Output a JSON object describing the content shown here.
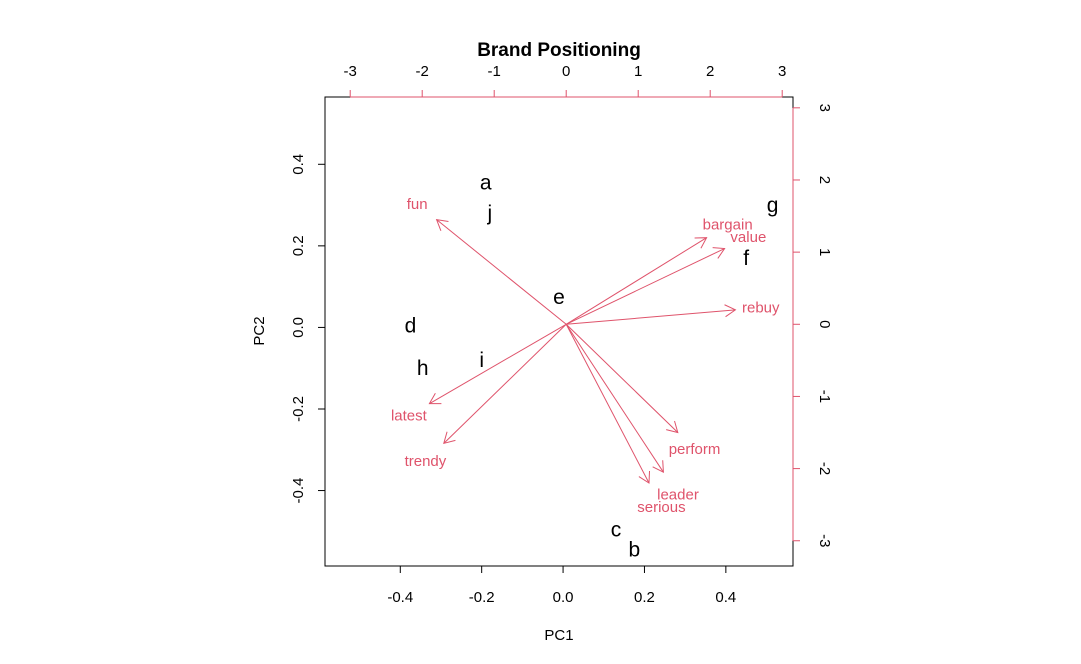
{
  "chart_data": {
    "type": "biplot",
    "title": "Brand Positioning",
    "xlabel": "PC1",
    "ylabel": "PC2",
    "xlim": [
      -0.585,
      0.565
    ],
    "ylim": [
      -0.585,
      0.565
    ],
    "top_right_lim": [
      -3.35,
      3.15
    ],
    "ticks": {
      "bottom": [
        "-0.4",
        "-0.2",
        "0.0",
        "0.2",
        "0.4"
      ],
      "left": [
        "-0.4",
        "-0.2",
        "0.0",
        "0.2",
        "0.4"
      ],
      "top": [
        "-3",
        "-2",
        "-1",
        "0",
        "1",
        "2",
        "3"
      ],
      "right": [
        "-3",
        "-2",
        "-1",
        "0",
        "1",
        "2",
        "3"
      ]
    },
    "observations": [
      {
        "label": "a",
        "x": -0.19,
        "y": 0.355
      },
      {
        "label": "j",
        "x": -0.18,
        "y": 0.28
      },
      {
        "label": "g",
        "x": 0.515,
        "y": 0.3
      },
      {
        "label": "f",
        "x": 0.45,
        "y": 0.17
      },
      {
        "label": "e",
        "x": -0.01,
        "y": 0.075
      },
      {
        "label": "d",
        "x": -0.375,
        "y": 0.005
      },
      {
        "label": "h",
        "x": -0.345,
        "y": -0.1
      },
      {
        "label": "i",
        "x": -0.2,
        "y": -0.08
      },
      {
        "label": "c",
        "x": 0.13,
        "y": -0.495
      },
      {
        "label": "b",
        "x": 0.175,
        "y": -0.545
      }
    ],
    "loadings": [
      {
        "label": "fun",
        "x": -1.8,
        "y": 1.45
      },
      {
        "label": "bargain",
        "x": 1.95,
        "y": 1.2
      },
      {
        "label": "value",
        "x": 2.2,
        "y": 1.05
      },
      {
        "label": "rebuy",
        "x": 2.35,
        "y": 0.2
      },
      {
        "label": "perform",
        "x": 1.55,
        "y": -1.5
      },
      {
        "label": "leader",
        "x": 1.35,
        "y": -2.05
      },
      {
        "label": "serious",
        "x": 1.15,
        "y": -2.2
      },
      {
        "label": "latest",
        "x": -1.9,
        "y": -1.1
      },
      {
        "label": "trendy",
        "x": -1.7,
        "y": -1.65
      }
    ],
    "colors": {
      "loadings": "#DF536B",
      "observations": "#000000"
    }
  }
}
